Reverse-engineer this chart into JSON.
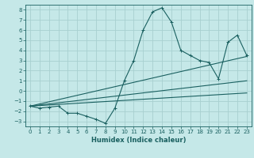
{
  "xlabel": "Humidex (Indice chaleur)",
  "bg_color": "#c5e8e8",
  "grid_color": "#a8d0d0",
  "line_color": "#1a6060",
  "xlim": [
    -0.5,
    23.5
  ],
  "ylim": [
    -3.5,
    8.5
  ],
  "xticks": [
    0,
    1,
    2,
    3,
    4,
    5,
    6,
    7,
    8,
    9,
    10,
    11,
    12,
    13,
    14,
    15,
    16,
    17,
    18,
    19,
    20,
    21,
    22,
    23
  ],
  "yticks": [
    -3,
    -2,
    -1,
    0,
    1,
    2,
    3,
    4,
    5,
    6,
    7,
    8
  ],
  "line1_x": [
    0,
    1,
    2,
    3,
    4,
    5,
    6,
    7,
    8,
    9,
    10,
    11,
    12,
    13,
    14,
    15,
    16,
    17,
    18,
    19,
    20,
    21,
    22,
    23
  ],
  "line1_y": [
    -1.5,
    -1.7,
    -1.6,
    -1.5,
    -2.2,
    -2.2,
    -2.5,
    -2.8,
    -3.2,
    -1.7,
    1.0,
    3.0,
    6.0,
    7.8,
    8.2,
    6.8,
    4.0,
    3.5,
    3.0,
    2.8,
    1.2,
    4.8,
    5.5,
    3.5
  ],
  "line2_x": [
    0,
    23
  ],
  "line2_y": [
    -1.5,
    3.4
  ],
  "line3_x": [
    0,
    23
  ],
  "line3_y": [
    -1.5,
    1.0
  ],
  "line4_x": [
    0,
    23
  ],
  "line4_y": [
    -1.5,
    -0.2
  ]
}
